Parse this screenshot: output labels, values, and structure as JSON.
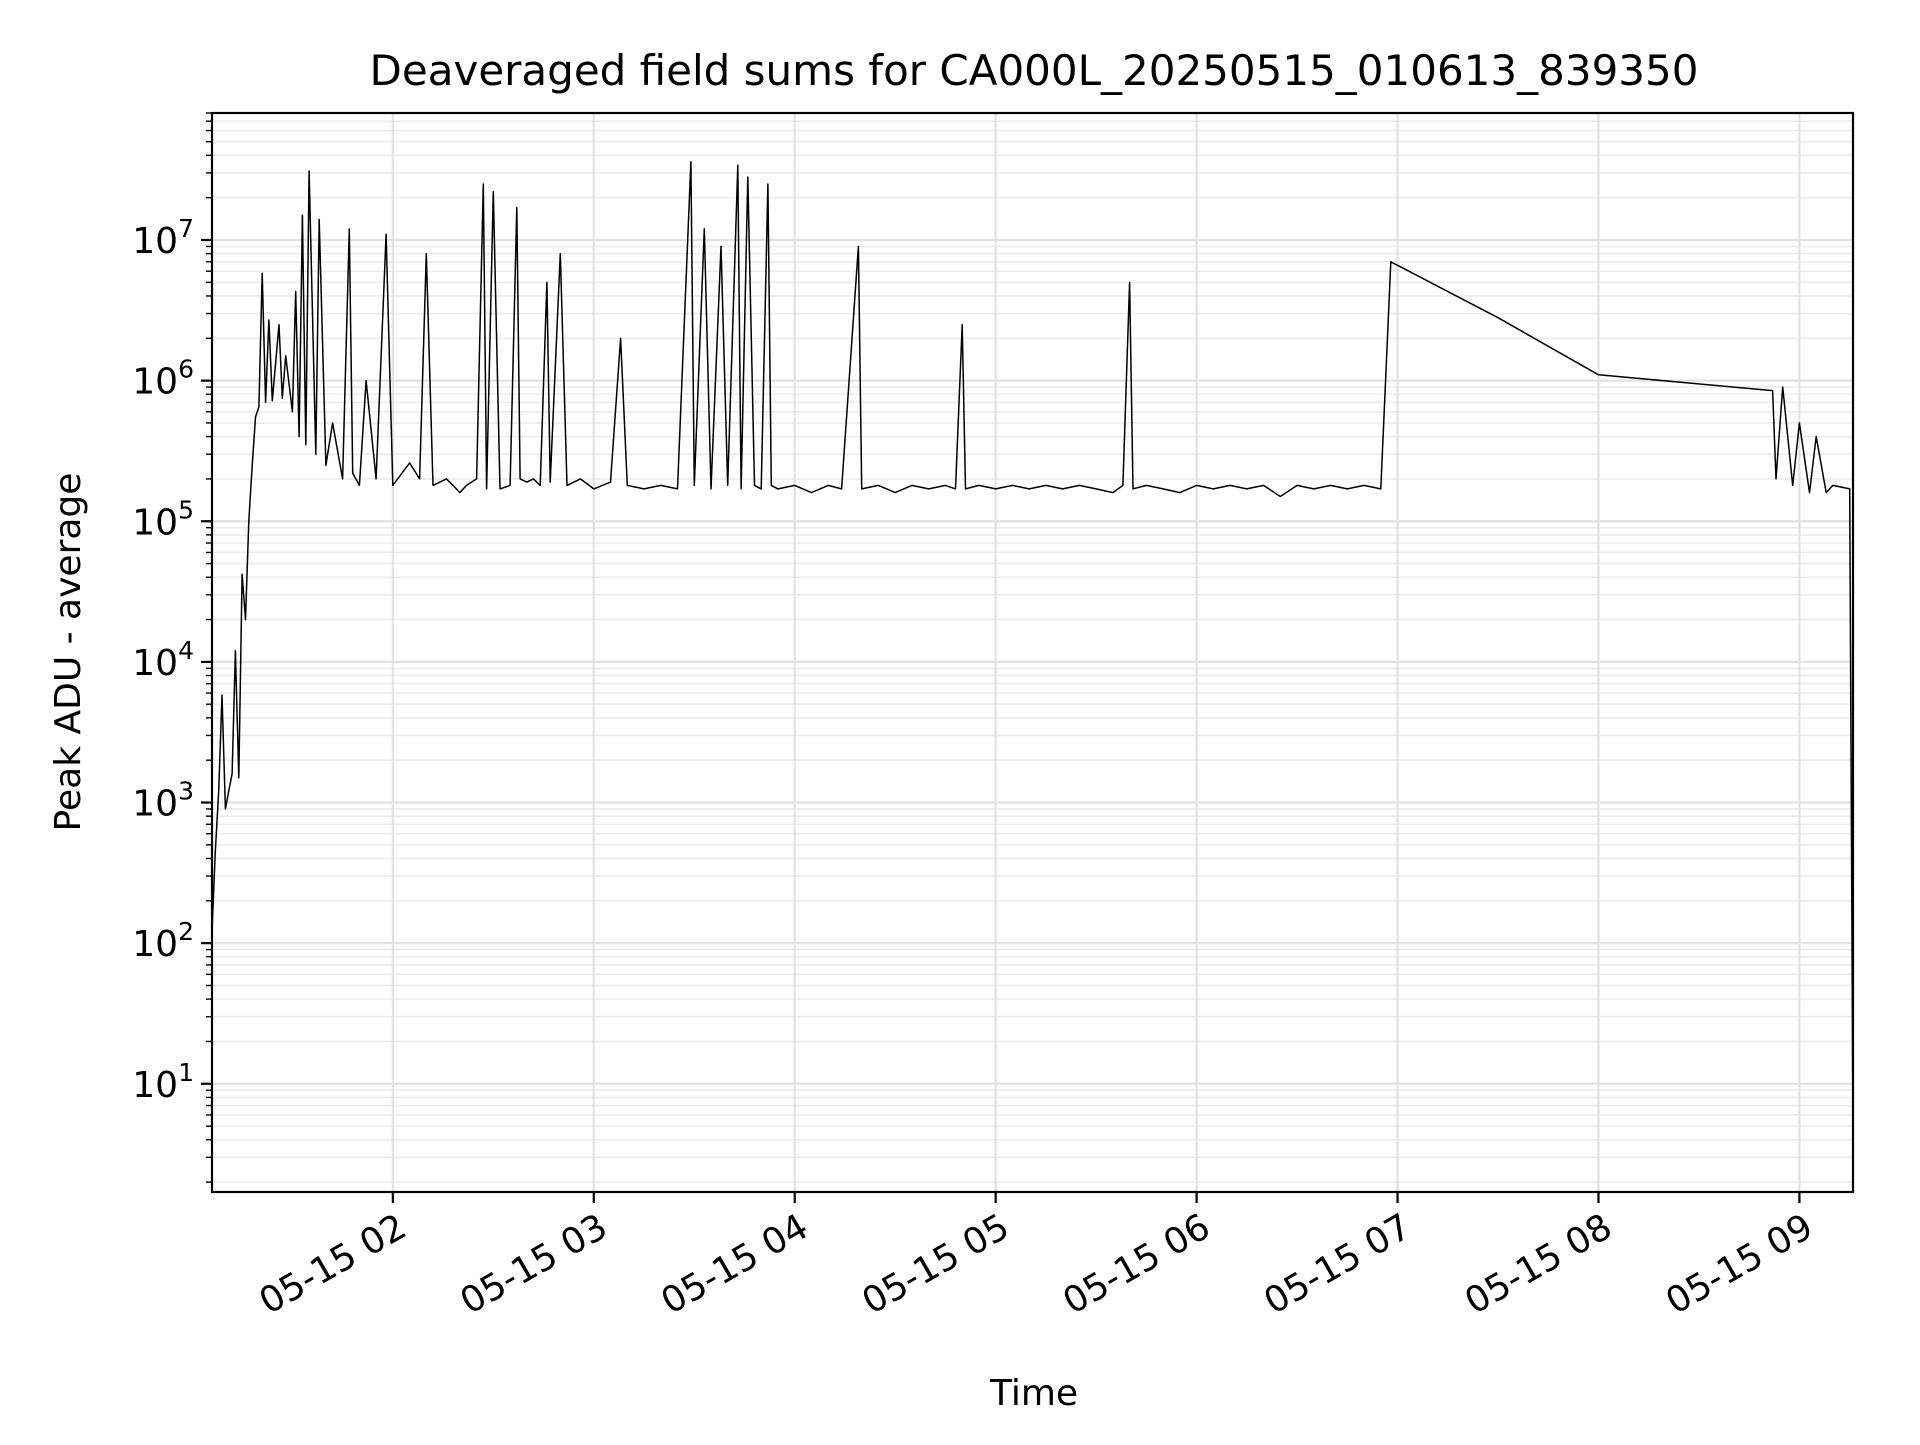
{
  "chart_data": {
    "type": "line",
    "title": "Deaveraged field sums for CA000L_20250515_010613_839350",
    "xlabel": "Time",
    "ylabel": "Peak ADU - average",
    "yscale": "log",
    "grid": true,
    "grid_minor": true,
    "xlim": [
      "05-15 01:06",
      "05-15 09:16"
    ],
    "ylim": [
      1.7,
      80000000
    ],
    "x_ticks": [
      "05-15 02",
      "05-15 03",
      "05-15 04",
      "05-15 05",
      "05-15 06",
      "05-15 07",
      "05-15 08",
      "05-15 09"
    ],
    "y_ticks": [
      {
        "base": "10",
        "exp": "1",
        "value": 10
      },
      {
        "base": "10",
        "exp": "2",
        "value": 100
      },
      {
        "base": "10",
        "exp": "3",
        "value": 1000
      },
      {
        "base": "10",
        "exp": "4",
        "value": 10000
      },
      {
        "base": "10",
        "exp": "5",
        "value": 100000
      },
      {
        "base": "10",
        "exp": "6",
        "value": 1000000
      },
      {
        "base": "10",
        "exp": "7",
        "value": 10000000
      }
    ],
    "series": [
      {
        "color": "#000000",
        "points": [
          [
            "05-15 01:06",
            120
          ],
          [
            "05-15 01:07",
            450
          ],
          [
            "05-15 01:08",
            1200
          ],
          [
            "05-15 01:09",
            5800
          ],
          [
            "05-15 01:10",
            900
          ],
          [
            "05-15 01:11",
            1200
          ],
          [
            "05-15 01:12",
            1600
          ],
          [
            "05-15 01:13",
            12000
          ],
          [
            "05-15 01:14",
            1500
          ],
          [
            "05-15 01:15",
            42000
          ],
          [
            "05-15 01:16",
            20000
          ],
          [
            "05-15 01:17",
            100000
          ],
          [
            "05-15 01:18",
            250000
          ],
          [
            "05-15 01:19",
            550000
          ],
          [
            "05-15 01:20",
            650000
          ],
          [
            "05-15 01:21",
            5800000
          ],
          [
            "05-15 01:22",
            700000
          ],
          [
            "05-15 01:23",
            2700000
          ],
          [
            "05-15 01:24",
            720000
          ],
          [
            "05-15 01:26",
            2500000
          ],
          [
            "05-15 01:27",
            750000
          ],
          [
            "05-15 01:28",
            1500000
          ],
          [
            "05-15 01:30",
            600000
          ],
          [
            "05-15 01:31",
            4300000
          ],
          [
            "05-15 01:32",
            400000
          ],
          [
            "05-15 01:33",
            15000000
          ],
          [
            "05-15 01:34",
            350000
          ],
          [
            "05-15 01:35",
            31000000
          ],
          [
            "05-15 01:37",
            300000
          ],
          [
            "05-15 01:38",
            14000000
          ],
          [
            "05-15 01:40",
            250000
          ],
          [
            "05-15 01:42",
            500000
          ],
          [
            "05-15 01:45",
            200000
          ],
          [
            "05-15 01:47",
            12000000
          ],
          [
            "05-15 01:48",
            220000
          ],
          [
            "05-15 01:50",
            180000
          ],
          [
            "05-15 01:52",
            1000000
          ],
          [
            "05-15 01:55",
            200000
          ],
          [
            "05-15 01:58",
            11000000
          ],
          [
            "05-15 02:00",
            180000
          ],
          [
            "05-15 02:05",
            260000
          ],
          [
            "05-15 02:08",
            200000
          ],
          [
            "05-15 02:10",
            8000000
          ],
          [
            "05-15 02:12",
            180000
          ],
          [
            "05-15 02:16",
            200000
          ],
          [
            "05-15 02:18",
            180000
          ],
          [
            "05-15 02:20",
            160000
          ],
          [
            "05-15 02:22",
            180000
          ],
          [
            "05-15 02:25",
            200000
          ],
          [
            "05-15 02:27",
            25000000
          ],
          [
            "05-15 02:28",
            170000
          ],
          [
            "05-15 02:30",
            22000000
          ],
          [
            "05-15 02:32",
            170000
          ],
          [
            "05-15 02:35",
            180000
          ],
          [
            "05-15 02:37",
            17000000
          ],
          [
            "05-15 02:38",
            200000
          ],
          [
            "05-15 02:40",
            190000
          ],
          [
            "05-15 02:42",
            200000
          ],
          [
            "05-15 02:44",
            180000
          ],
          [
            "05-15 02:46",
            5000000
          ],
          [
            "05-15 02:47",
            190000
          ],
          [
            "05-15 02:50",
            8000000
          ],
          [
            "05-15 02:52",
            180000
          ],
          [
            "05-15 02:56",
            200000
          ],
          [
            "05-15 03:00",
            170000
          ],
          [
            "05-15 03:05",
            190000
          ],
          [
            "05-15 03:08",
            2000000
          ],
          [
            "05-15 03:10",
            180000
          ],
          [
            "05-15 03:15",
            170000
          ],
          [
            "05-15 03:20",
            180000
          ],
          [
            "05-15 03:25",
            170000
          ],
          [
            "05-15 03:29",
            36000000
          ],
          [
            "05-15 03:30",
            180000
          ],
          [
            "05-15 03:33",
            12000000
          ],
          [
            "05-15 03:35",
            170000
          ],
          [
            "05-15 03:38",
            9000000
          ],
          [
            "05-15 03:40",
            180000
          ],
          [
            "05-15 03:43",
            34000000
          ],
          [
            "05-15 03:44",
            170000
          ],
          [
            "05-15 03:46",
            28000000
          ],
          [
            "05-15 03:48",
            180000
          ],
          [
            "05-15 03:50",
            170000
          ],
          [
            "05-15 03:52",
            25000000
          ],
          [
            "05-15 03:53",
            180000
          ],
          [
            "05-15 03:55",
            170000
          ],
          [
            "05-15 04:00",
            180000
          ],
          [
            "05-15 04:05",
            160000
          ],
          [
            "05-15 04:10",
            180000
          ],
          [
            "05-15 04:14",
            170000
          ],
          [
            "05-15 04:19",
            9000000
          ],
          [
            "05-15 04:20",
            170000
          ],
          [
            "05-15 04:25",
            180000
          ],
          [
            "05-15 04:30",
            160000
          ],
          [
            "05-15 04:35",
            180000
          ],
          [
            "05-15 04:40",
            170000
          ],
          [
            "05-15 04:45",
            180000
          ],
          [
            "05-15 04:48",
            170000
          ],
          [
            "05-15 04:50",
            2500000
          ],
          [
            "05-15 04:51",
            170000
          ],
          [
            "05-15 04:55",
            180000
          ],
          [
            "05-15 05:00",
            170000
          ],
          [
            "05-15 05:05",
            180000
          ],
          [
            "05-15 05:10",
            170000
          ],
          [
            "05-15 05:15",
            180000
          ],
          [
            "05-15 05:20",
            170000
          ],
          [
            "05-15 05:25",
            180000
          ],
          [
            "05-15 05:30",
            170000
          ],
          [
            "05-15 05:35",
            160000
          ],
          [
            "05-15 05:38",
            180000
          ],
          [
            "05-15 05:40",
            5000000
          ],
          [
            "05-15 05:41",
            170000
          ],
          [
            "05-15 05:45",
            180000
          ],
          [
            "05-15 05:50",
            170000
          ],
          [
            "05-15 05:55",
            160000
          ],
          [
            "05-15 06:00",
            180000
          ],
          [
            "05-15 06:05",
            170000
          ],
          [
            "05-15 06:10",
            180000
          ],
          [
            "05-15 06:15",
            170000
          ],
          [
            "05-15 06:20",
            180000
          ],
          [
            "05-15 06:25",
            150000
          ],
          [
            "05-15 06:30",
            180000
          ],
          [
            "05-15 06:35",
            170000
          ],
          [
            "05-15 06:40",
            180000
          ],
          [
            "05-15 06:45",
            170000
          ],
          [
            "05-15 06:50",
            180000
          ],
          [
            "05-15 06:55",
            170000
          ],
          [
            "05-15 06:58",
            7000000
          ],
          [
            "05-15 07:30",
            2800000
          ],
          [
            "05-15 08:00",
            1100000
          ],
          [
            "05-15 08:52",
            850000
          ],
          [
            "05-15 08:53",
            200000
          ],
          [
            "05-15 08:55",
            900000
          ],
          [
            "05-15 08:58",
            180000
          ],
          [
            "05-15 09:00",
            500000
          ],
          [
            "05-15 09:03",
            160000
          ],
          [
            "05-15 09:05",
            400000
          ],
          [
            "05-15 09:08",
            160000
          ],
          [
            "05-15 09:10",
            180000
          ],
          [
            "05-15 09:15",
            170000
          ],
          [
            "05-15 09:16",
            4
          ]
        ]
      }
    ]
  }
}
